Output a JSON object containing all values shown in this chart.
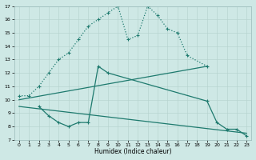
{
  "xlabel": "Humidex (Indice chaleur)",
  "bg_color": "#cee8e5",
  "grid_color": "#b8d4d0",
  "line_color": "#1e7a6e",
  "xlim": [
    -0.5,
    23.5
  ],
  "ylim": [
    7,
    17
  ],
  "xticks": [
    0,
    1,
    2,
    3,
    4,
    5,
    6,
    7,
    8,
    9,
    10,
    11,
    12,
    13,
    14,
    15,
    16,
    17,
    18,
    19,
    20,
    21,
    22,
    23
  ],
  "yticks": [
    7,
    8,
    9,
    10,
    11,
    12,
    13,
    14,
    15,
    16,
    17
  ],
  "series": [
    {
      "x": [
        0,
        1,
        2,
        3,
        4,
        5,
        6,
        7,
        8,
        9,
        10,
        11,
        12,
        13,
        14,
        15,
        16,
        17,
        19
      ],
      "y": [
        10.3,
        10.3,
        11.0,
        12.0,
        13.0,
        13.5,
        14.5,
        15.5,
        16.0,
        16.5,
        17.0,
        14.5,
        14.8,
        17.0,
        16.3,
        15.3,
        15.0,
        13.3,
        12.5
      ],
      "style": "dotted",
      "marker": true
    },
    {
      "x": [
        2,
        3,
        4,
        5,
        6,
        7,
        8,
        9,
        19,
        20,
        21,
        22,
        23
      ],
      "y": [
        9.5,
        8.8,
        8.3,
        8.0,
        8.3,
        8.3,
        12.5,
        12.0,
        9.9,
        8.3,
        7.8,
        7.8,
        7.3
      ],
      "style": "solid",
      "marker": true
    },
    {
      "x": [
        0,
        19
      ],
      "y": [
        10.0,
        12.5
      ],
      "style": "solid",
      "marker": false
    },
    {
      "x": [
        0,
        23
      ],
      "y": [
        9.5,
        7.5
      ],
      "style": "solid",
      "marker": false
    }
  ]
}
